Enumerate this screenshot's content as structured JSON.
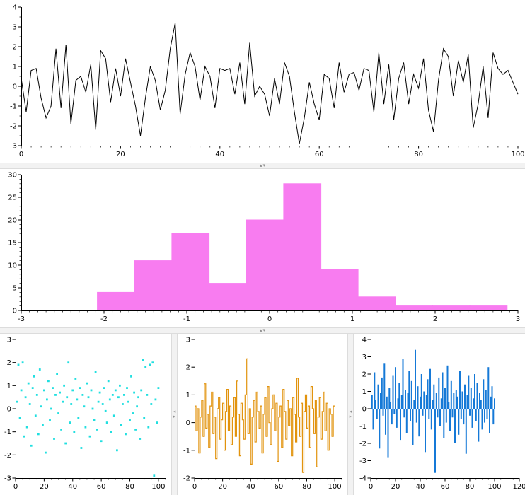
{
  "app": {
    "background": "#ffffff",
    "splitter_color": "#f2f2f2"
  },
  "icons": {
    "collapse_up": "▴",
    "collapse_down": "▾",
    "collapse_left": "◂",
    "collapse_right": "▸"
  },
  "chart_data": [
    {
      "type": "line",
      "title": "",
      "xlabel": "",
      "ylabel": "",
      "color": "#000000",
      "xlim": [
        0,
        100
      ],
      "ylim": [
        -3,
        4
      ],
      "xticks": [
        0,
        20,
        40,
        60,
        80,
        100
      ],
      "yticks": [
        -3,
        -2,
        -1,
        0,
        1,
        2,
        3,
        4
      ],
      "x_minor_step": 2,
      "y_minor_step": 0.5,
      "values": [
        0.4,
        -1.3,
        0.8,
        0.9,
        -0.6,
        -1.6,
        -1.0,
        1.9,
        -1.1,
        2.1,
        -1.9,
        0.3,
        0.5,
        -0.3,
        1.1,
        -2.2,
        1.8,
        1.4,
        -0.8,
        0.9,
        -0.5,
        1.4,
        0.2,
        -1.0,
        -2.5,
        -0.6,
        1.0,
        0.3,
        -1.2,
        -0.2,
        1.9,
        3.2,
        -1.4,
        0.6,
        1.7,
        1.0,
        -0.7,
        1.0,
        0.5,
        -1.1,
        0.9,
        0.8,
        0.9,
        -0.4,
        1.2,
        -0.9,
        2.2,
        -0.5,
        0.0,
        -0.4,
        -1.5,
        0.4,
        -0.9,
        1.2,
        0.5,
        -1.3,
        -2.9,
        -1.6,
        0.2,
        -0.9,
        -1.7,
        0.6,
        0.4,
        -1.1,
        1.2,
        -0.3,
        0.6,
        0.7,
        -0.2,
        0.9,
        0.8,
        -1.3,
        1.7,
        -0.9,
        1.1,
        -1.7,
        0.4,
        1.2,
        -0.9,
        0.6,
        -0.1,
        1.4,
        -1.2,
        -2.3,
        0.3,
        1.9,
        1.5,
        -0.5,
        1.3,
        0.2,
        1.6,
        -2.1,
        -0.9,
        1.0,
        -1.6,
        1.7,
        0.9,
        0.6,
        0.8,
        0.2,
        -0.4
      ]
    },
    {
      "type": "histogram",
      "title": "",
      "xlabel": "",
      "ylabel": "",
      "color": "#f87cf0",
      "xlim": [
        -3,
        3
      ],
      "ylim": [
        0,
        30
      ],
      "xticks": [
        -3,
        -2,
        -1,
        0,
        1,
        2,
        3
      ],
      "yticks": [
        0,
        5,
        10,
        15,
        20,
        25,
        30
      ],
      "x_minor_step": 0.1,
      "y_minor_step": 1,
      "bin_edges": [
        -2.08,
        -1.63,
        -1.18,
        -0.73,
        -0.28,
        0.17,
        0.62,
        1.07,
        1.52,
        1.97,
        2.42,
        2.87
      ],
      "counts": [
        4,
        11,
        17,
        6,
        20,
        28,
        9,
        3,
        1,
        1,
        1
      ]
    },
    {
      "type": "scatter",
      "title": "",
      "xlabel": "",
      "ylabel": "",
      "color": "#21dfe0",
      "xlim": [
        0,
        105
      ],
      "ylim": [
        -3,
        3
      ],
      "xticks": [
        0,
        20,
        40,
        60,
        80,
        100
      ],
      "yticks": [
        -3,
        -2,
        -1,
        0,
        1,
        2,
        3
      ],
      "x_minor_step": 5,
      "values": [
        0.3,
        1.9,
        -0.4,
        0.8,
        2.0,
        -1.2,
        0.5,
        -0.8,
        1.1,
        0.2,
        -1.6,
        0.9,
        1.4,
        -0.3,
        0.6,
        -1.1,
        1.7,
        0.1,
        -0.7,
        0.8,
        -1.9,
        0.4,
        1.2,
        -0.5,
        0.0,
        0.9,
        -1.3,
        0.6,
        1.5,
        -0.2,
        0.7,
        -0.9,
        0.3,
        1.0,
        -1.5,
        0.5,
        2.0,
        -0.6,
        0.2,
        0.8,
        -1.0,
        1.3,
        0.4,
        -0.4,
        0.9,
        -1.7,
        0.6,
        0.1,
        -0.8,
        1.1,
        0.5,
        -1.2,
        0.8,
        0.0,
        -0.5,
        1.6,
        -0.9,
        0.3,
        0.7,
        -1.4,
        0.2,
        0.9,
        -0.1,
        -0.6,
        1.2,
        0.4,
        -1.0,
        0.6,
        -0.3,
        0.8,
        -1.8,
        0.5,
        1.0,
        -0.7,
        0.2,
        0.6,
        -1.1,
        0.9,
        0.3,
        -0.5,
        1.4,
        -0.2,
        0.7,
        -0.9,
        0.1,
        0.5,
        -1.3,
        0.8,
        2.1,
        -0.4,
        1.8,
        0.6,
        -0.8,
        1.9,
        0.2,
        2.0,
        -2.9,
        0.4,
        -0.6,
        0.9
      ]
    },
    {
      "type": "stairs",
      "title": "",
      "xlabel": "",
      "ylabel": "",
      "color": "#e2930d",
      "xlim": [
        0,
        105
      ],
      "ylim": [
        -2,
        3
      ],
      "xticks": [
        0,
        20,
        40,
        60,
        80,
        100
      ],
      "yticks": [
        -2,
        -1,
        0,
        1,
        2,
        3
      ],
      "x_minor_step": 5,
      "values": [
        0.6,
        -0.3,
        0.5,
        -1.1,
        0.2,
        0.8,
        -0.5,
        1.4,
        -0.2,
        0.3,
        -0.9,
        0.6,
        1.1,
        -0.4,
        0.2,
        -1.3,
        0.5,
        0.9,
        -0.6,
        0.1,
        0.7,
        -1.0,
        0.4,
        1.2,
        -0.3,
        0.6,
        -0.8,
        0.2,
        0.9,
        -0.5,
        1.5,
        0.3,
        -1.2,
        0.7,
        0.1,
        -0.6,
        1.0,
        2.3,
        -0.4,
        0.5,
        -1.5,
        0.2,
        0.8,
        -0.7,
        1.1,
        0.4,
        -0.2,
        0.6,
        -1.1,
        0.3,
        0.9,
        -0.5,
        1.3,
        0.0,
        -0.8,
        0.5,
        1.0,
        -0.3,
        0.7,
        -1.4,
        0.2,
        0.6,
        -0.9,
        1.2,
        0.4,
        -0.6,
        0.8,
        -0.1,
        0.5,
        -1.2,
        0.9,
        0.3,
        -0.7,
        1.6,
        0.2,
        -0.5,
        0.7,
        -1.8,
        0.4,
        1.0,
        -0.2,
        0.6,
        -0.9,
        1.3,
        0.5,
        -0.4,
        0.8,
        -1.6,
        0.2,
        0.9,
        -0.6,
        0.4,
        1.1,
        -0.3,
        0.7,
        -1.0,
        0.5,
        0.3,
        -0.5,
        0.6
      ]
    },
    {
      "type": "stem",
      "title": "",
      "xlabel": "",
      "ylabel": "",
      "color": "#1579d7",
      "xlim": [
        0,
        120
      ],
      "ylim": [
        -4,
        4
      ],
      "xticks": [
        0,
        20,
        40,
        60,
        80,
        100,
        120
      ],
      "yticks": [
        -4,
        -3,
        -2,
        -1,
        0,
        1,
        2,
        3,
        4
      ],
      "x_minor_step": 5,
      "values": [
        0.8,
        -1.2,
        2.1,
        0.5,
        -0.6,
        1.4,
        -2.3,
        0.9,
        1.8,
        -0.4,
        2.6,
        -1.5,
        0.7,
        -2.8,
        1.2,
        0.4,
        -0.9,
        1.9,
        -0.3,
        2.4,
        -1.1,
        0.6,
        1.5,
        -1.8,
        0.8,
        2.9,
        -0.5,
        1.1,
        -1.4,
        0.9,
        2.2,
        -0.7,
        1.6,
        -2.1,
        0.5,
        3.4,
        -0.8,
        1.3,
        -1.6,
        0.7,
        2.0,
        -0.4,
        1.0,
        -2.5,
        0.8,
        1.7,
        -0.6,
        2.3,
        -1.2,
        0.5,
        1.4,
        -3.7,
        0.9,
        -0.5,
        1.8,
        -1.0,
        0.6,
        2.1,
        -1.7,
        1.2,
        -0.8,
        2.5,
        0.4,
        -1.3,
        1.6,
        -0.5,
        0.9,
        -2.0,
        1.1,
        0.7,
        -1.5,
        2.2,
        -0.6,
        1.0,
        -0.9,
        1.4,
        -2.6,
        0.8,
        1.9,
        -0.4,
        1.2,
        -1.1,
        0.6,
        2.0,
        -0.7,
        1.5,
        -1.9,
        0.9,
        0.5,
        -1.2,
        1.7,
        -0.8,
        1.1,
        -0.6,
        2.4,
        -1.4,
        0.7,
        1.3,
        -0.9,
        0.6
      ]
    }
  ]
}
